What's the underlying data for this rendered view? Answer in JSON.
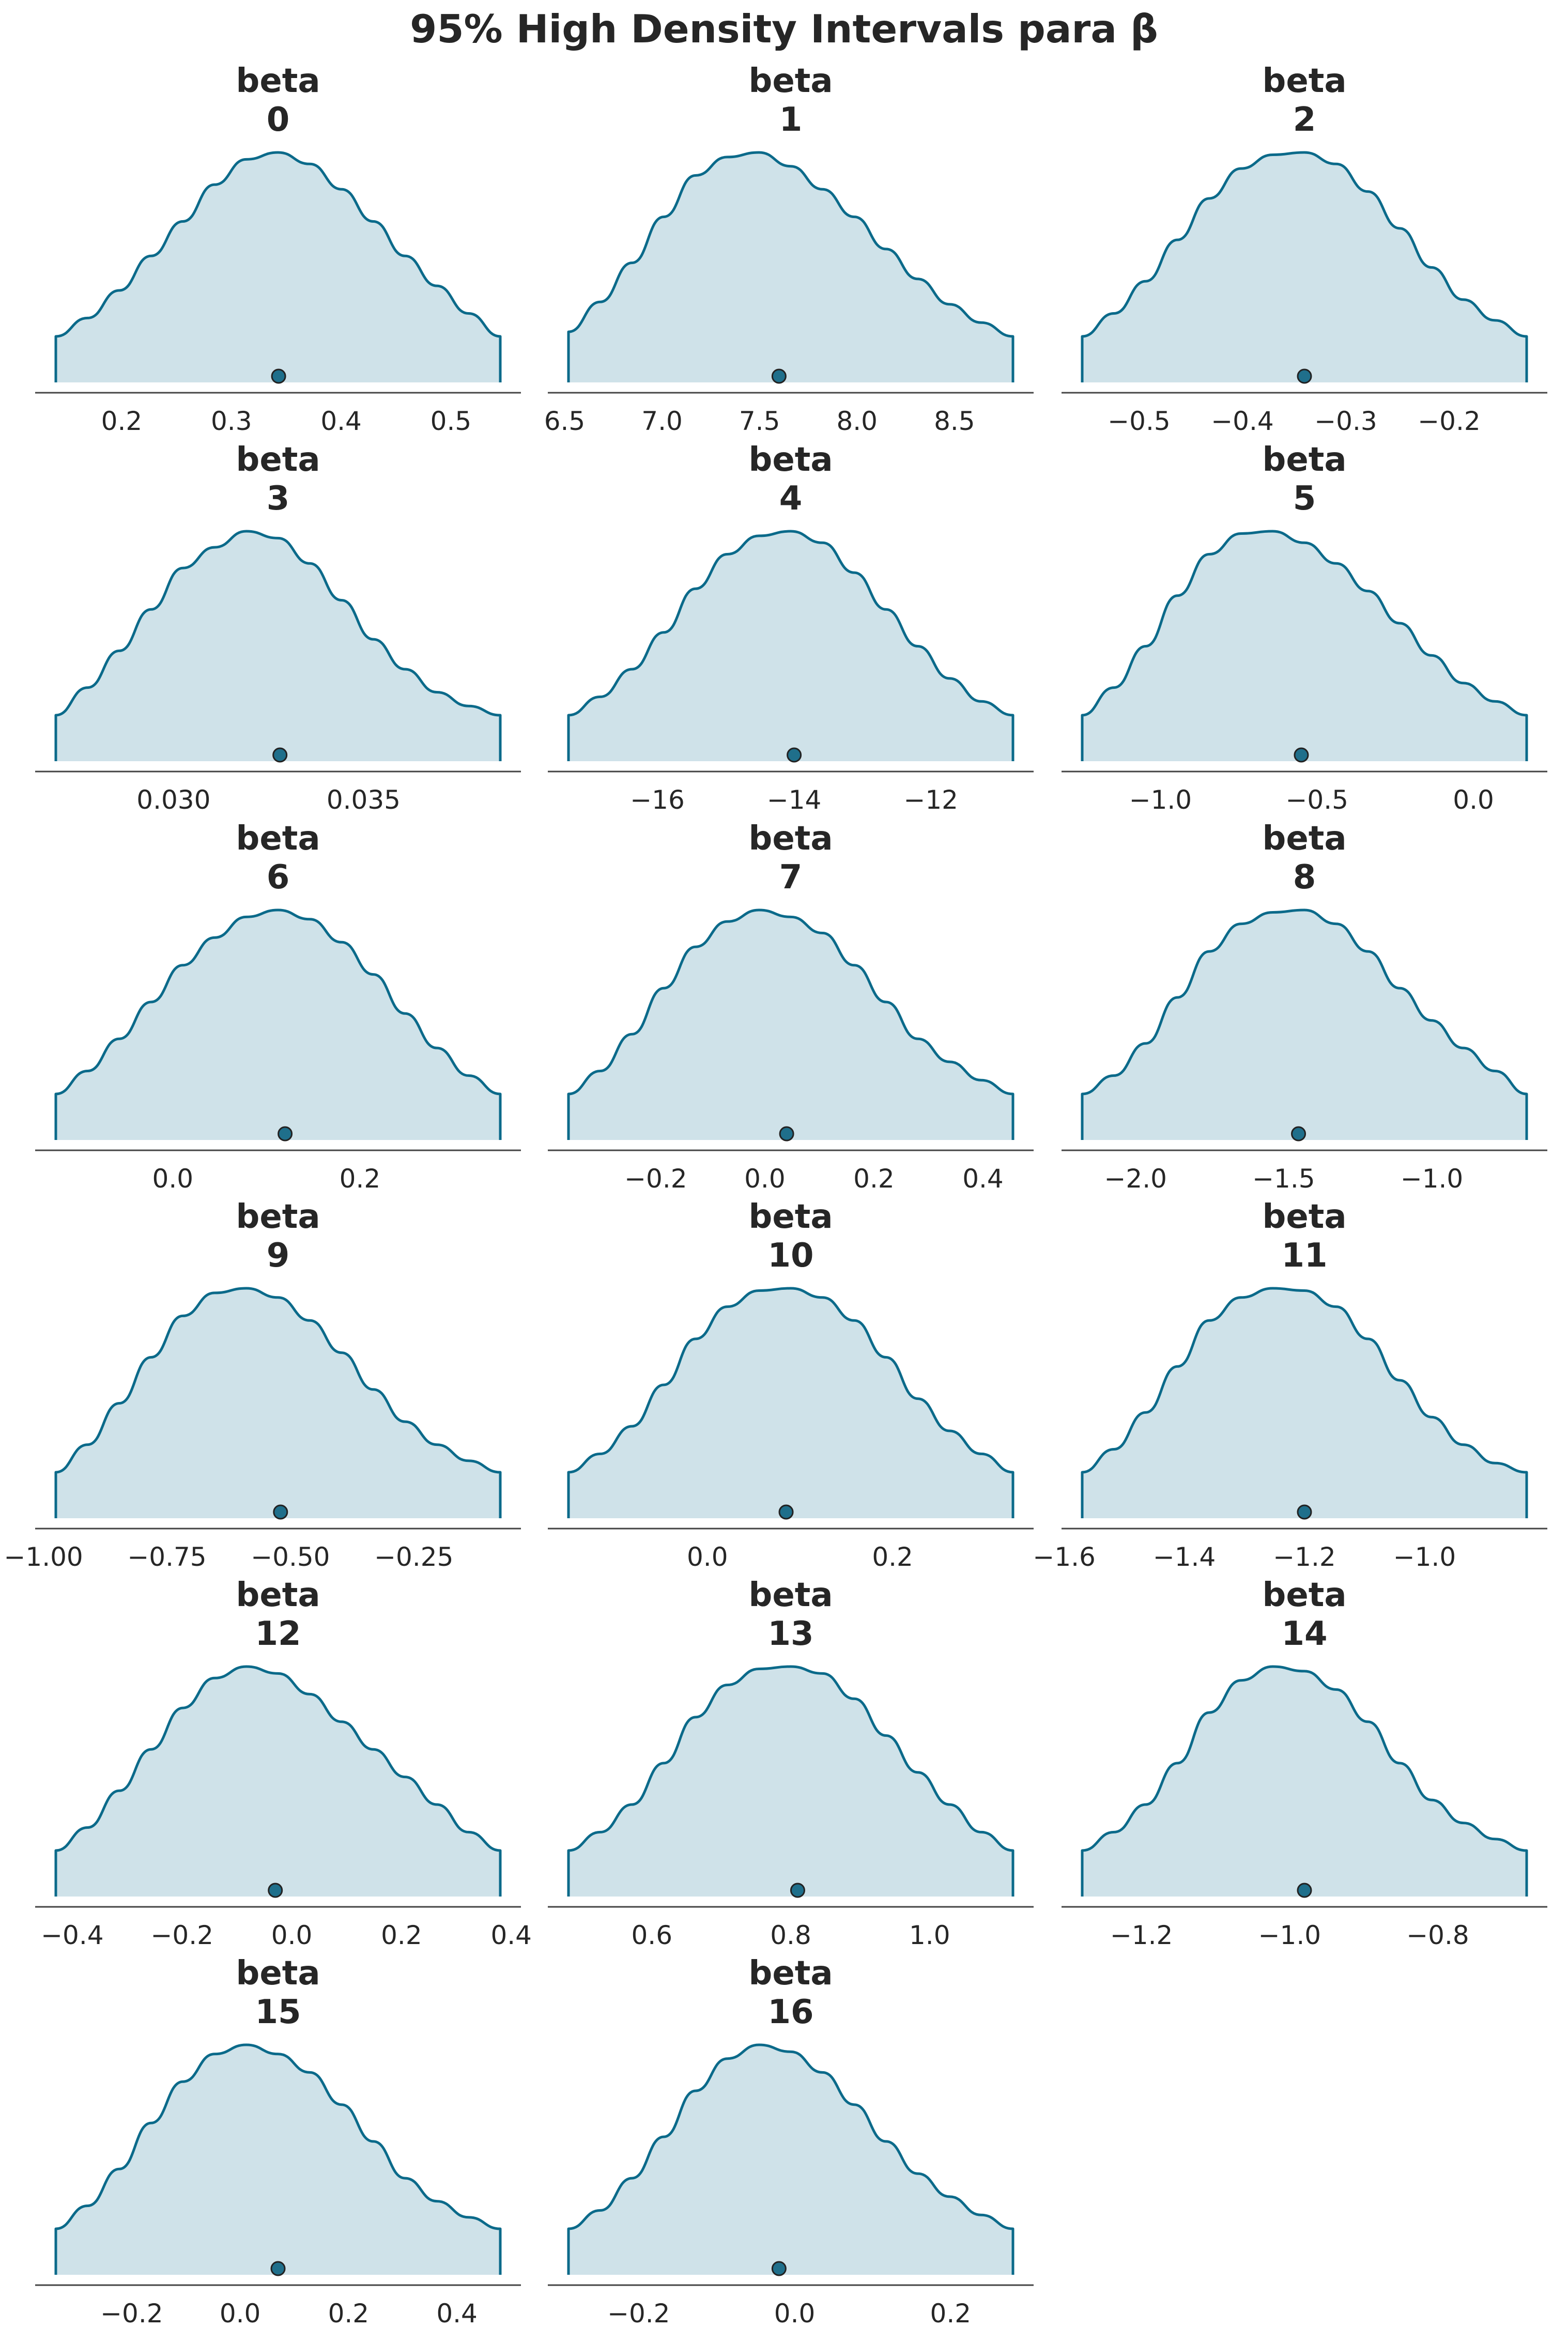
{
  "title": "95% High Density Intervals para β",
  "colors": {
    "line": "#0b6a8a",
    "fill": "#cfe2e9",
    "axis": "#444444",
    "text": "#262626",
    "point": "#1f6f8b"
  },
  "chart_data": [
    {
      "type": "area",
      "title_line1": "beta",
      "title_line2": "0",
      "hdi": [
        0.14,
        0.545
      ],
      "point": 0.343,
      "ticks": [
        0.2,
        0.3,
        0.4,
        0.5
      ],
      "tick_labels": [
        "0.2",
        "0.3",
        "0.4",
        "0.5"
      ],
      "density": [
        0.2,
        0.28,
        0.4,
        0.55,
        0.7,
        0.86,
        0.97,
        1.0,
        0.95,
        0.84,
        0.7,
        0.55,
        0.42,
        0.3,
        0.2
      ]
    },
    {
      "type": "area",
      "title_line1": "beta",
      "title_line2": "1",
      "hdi": [
        6.52,
        8.8
      ],
      "point": 7.6,
      "ticks": [
        6.5,
        7.0,
        7.5,
        8.0,
        8.5
      ],
      "tick_labels": [
        "6.5",
        "7.0",
        "7.5",
        "8.0",
        "8.5"
      ],
      "density": [
        0.22,
        0.35,
        0.52,
        0.72,
        0.9,
        0.98,
        1.0,
        0.94,
        0.84,
        0.72,
        0.58,
        0.45,
        0.34,
        0.26,
        0.2
      ]
    },
    {
      "type": "area",
      "title_line1": "beta",
      "title_line2": "2",
      "hdi": [
        -0.555,
        -0.125
      ],
      "point": -0.34,
      "ticks": [
        -0.5,
        -0.4,
        -0.3,
        -0.2
      ],
      "tick_labels": [
        "−0.5",
        "−0.4",
        "−0.3",
        "−0.2"
      ],
      "density": [
        0.2,
        0.3,
        0.44,
        0.62,
        0.8,
        0.93,
        0.99,
        1.0,
        0.95,
        0.83,
        0.67,
        0.5,
        0.36,
        0.27,
        0.2
      ]
    },
    {
      "type": "area",
      "title_line1": "beta",
      "title_line2": "3",
      "hdi": [
        0.0269,
        0.0386
      ],
      "point": 0.0328,
      "ticks": [
        0.03,
        0.035
      ],
      "tick_labels": [
        "0.030",
        "0.035"
      ],
      "density": [
        0.2,
        0.32,
        0.48,
        0.66,
        0.84,
        0.93,
        1.0,
        0.97,
        0.86,
        0.7,
        0.53,
        0.4,
        0.3,
        0.24,
        0.2
      ]
    },
    {
      "type": "area",
      "title_line1": "beta",
      "title_line2": "4",
      "hdi": [
        -17.3,
        -10.8
      ],
      "point": -14.0,
      "ticks": [
        -16,
        -14,
        -12
      ],
      "tick_labels": [
        "−16",
        "−14",
        "−12"
      ],
      "density": [
        0.2,
        0.28,
        0.4,
        0.56,
        0.75,
        0.9,
        0.98,
        1.0,
        0.95,
        0.82,
        0.66,
        0.5,
        0.36,
        0.26,
        0.2
      ]
    },
    {
      "type": "area",
      "title_line1": "beta",
      "title_line2": "5",
      "hdi": [
        -1.25,
        0.17
      ],
      "point": -0.55,
      "ticks": [
        -1.0,
        -0.5,
        0.0
      ],
      "tick_labels": [
        "−1.0",
        "−0.5",
        "0.0"
      ],
      "density": [
        0.2,
        0.32,
        0.5,
        0.72,
        0.9,
        0.99,
        1.0,
        0.95,
        0.86,
        0.74,
        0.6,
        0.46,
        0.34,
        0.26,
        0.2
      ]
    },
    {
      "type": "area",
      "title_line1": "beta",
      "title_line2": "6",
      "hdi": [
        -0.125,
        0.35
      ],
      "point": 0.12,
      "ticks": [
        0.0,
        0.2
      ],
      "tick_labels": [
        "0.0",
        "0.2"
      ],
      "density": [
        0.2,
        0.3,
        0.44,
        0.6,
        0.76,
        0.88,
        0.97,
        1.0,
        0.96,
        0.86,
        0.72,
        0.55,
        0.4,
        0.28,
        0.2
      ]
    },
    {
      "type": "area",
      "title_line1": "beta",
      "title_line2": "7",
      "hdi": [
        -0.36,
        0.455
      ],
      "point": 0.04,
      "ticks": [
        -0.2,
        0.0,
        0.2,
        0.4
      ],
      "tick_labels": [
        "−0.2",
        "0.0",
        "0.2",
        "0.4"
      ],
      "density": [
        0.2,
        0.3,
        0.46,
        0.66,
        0.84,
        0.95,
        1.0,
        0.97,
        0.9,
        0.76,
        0.6,
        0.44,
        0.34,
        0.26,
        0.2
      ]
    },
    {
      "type": "area",
      "title_line1": "beta",
      "title_line2": "8",
      "hdi": [
        -2.18,
        -0.68
      ],
      "point": -1.45,
      "ticks": [
        -2.0,
        -1.5,
        -1.0
      ],
      "tick_labels": [
        "−2.0",
        "−1.5",
        "−1.0"
      ],
      "density": [
        0.2,
        0.28,
        0.42,
        0.62,
        0.82,
        0.94,
        0.99,
        1.0,
        0.94,
        0.82,
        0.66,
        0.52,
        0.4,
        0.3,
        0.2
      ]
    },
    {
      "type": "area",
      "title_line1": "beta",
      "title_line2": "9",
      "hdi": [
        -0.975,
        -0.075
      ],
      "point": -0.52,
      "ticks": [
        -1.0,
        -0.75,
        -0.5,
        -0.25
      ],
      "tick_labels": [
        "−1.00",
        "−0.75",
        "−0.50",
        "−0.25"
      ],
      "density": [
        0.2,
        0.32,
        0.5,
        0.7,
        0.88,
        0.98,
        1.0,
        0.96,
        0.86,
        0.72,
        0.56,
        0.42,
        0.32,
        0.25,
        0.2
      ]
    },
    {
      "type": "area",
      "title_line1": "beta",
      "title_line2": "10",
      "hdi": [
        -0.15,
        0.33
      ],
      "point": 0.085,
      "ticks": [
        0.0,
        0.2
      ],
      "tick_labels": [
        "0.0",
        "0.2"
      ],
      "density": [
        0.2,
        0.28,
        0.4,
        0.58,
        0.78,
        0.92,
        0.99,
        1.0,
        0.96,
        0.86,
        0.7,
        0.52,
        0.38,
        0.28,
        0.2
      ]
    },
    {
      "type": "area",
      "title_line1": "beta",
      "title_line2": "11",
      "hdi": [
        -1.57,
        -0.83
      ],
      "point": -1.2,
      "ticks": [
        -1.6,
        -1.4,
        -1.2,
        -1.0
      ],
      "tick_labels": [
        "−1.6",
        "−1.4",
        "−1.2",
        "−1.0"
      ],
      "density": [
        0.2,
        0.3,
        0.46,
        0.66,
        0.86,
        0.96,
        1.0,
        0.99,
        0.92,
        0.78,
        0.6,
        0.44,
        0.32,
        0.24,
        0.2
      ]
    },
    {
      "type": "area",
      "title_line1": "beta",
      "title_line2": "12",
      "hdi": [
        -0.43,
        0.38
      ],
      "point": -0.03,
      "ticks": [
        -0.4,
        -0.2,
        0.0,
        0.2,
        0.4
      ],
      "tick_labels": [
        "−0.4",
        "−0.2",
        "0.0",
        "0.2",
        "0.4"
      ],
      "density": [
        0.2,
        0.3,
        0.46,
        0.64,
        0.82,
        0.95,
        1.0,
        0.97,
        0.88,
        0.76,
        0.64,
        0.52,
        0.4,
        0.28,
        0.2
      ]
    },
    {
      "type": "area",
      "title_line1": "beta",
      "title_line2": "13",
      "hdi": [
        0.48,
        1.12
      ],
      "point": 0.81,
      "ticks": [
        0.6,
        0.8,
        1.0
      ],
      "tick_labels": [
        "0.6",
        "0.8",
        "1.0"
      ],
      "density": [
        0.2,
        0.28,
        0.4,
        0.58,
        0.78,
        0.92,
        0.99,
        1.0,
        0.97,
        0.86,
        0.7,
        0.54,
        0.4,
        0.28,
        0.2
      ]
    },
    {
      "type": "area",
      "title_line1": "beta",
      "title_line2": "14",
      "hdi": [
        -1.28,
        -0.68
      ],
      "point": -0.98,
      "ticks": [
        -1.2,
        -1.0,
        -0.8
      ],
      "tick_labels": [
        "−1.2",
        "−1.0",
        "−0.8"
      ],
      "density": [
        0.2,
        0.28,
        0.4,
        0.58,
        0.8,
        0.94,
        1.0,
        0.98,
        0.9,
        0.76,
        0.58,
        0.42,
        0.32,
        0.25,
        0.2
      ]
    },
    {
      "type": "area",
      "title_line1": "beta",
      "title_line2": "15",
      "hdi": [
        -0.34,
        0.48
      ],
      "point": 0.07,
      "ticks": [
        -0.2,
        0.0,
        0.2,
        0.4
      ],
      "tick_labels": [
        "−0.2",
        "0.0",
        "0.2",
        "0.4"
      ],
      "density": [
        0.2,
        0.3,
        0.46,
        0.66,
        0.84,
        0.96,
        1.0,
        0.96,
        0.88,
        0.74,
        0.58,
        0.42,
        0.32,
        0.25,
        0.2
      ]
    },
    {
      "type": "area",
      "title_line1": "beta",
      "title_line2": "16",
      "hdi": [
        -0.29,
        0.28
      ],
      "point": -0.02,
      "ticks": [
        -0.2,
        0.0,
        0.2
      ],
      "tick_labels": [
        "−0.2",
        "0.0",
        "0.2"
      ],
      "density": [
        0.2,
        0.28,
        0.42,
        0.6,
        0.8,
        0.94,
        1.0,
        0.97,
        0.88,
        0.74,
        0.58,
        0.44,
        0.34,
        0.26,
        0.2
      ]
    }
  ]
}
